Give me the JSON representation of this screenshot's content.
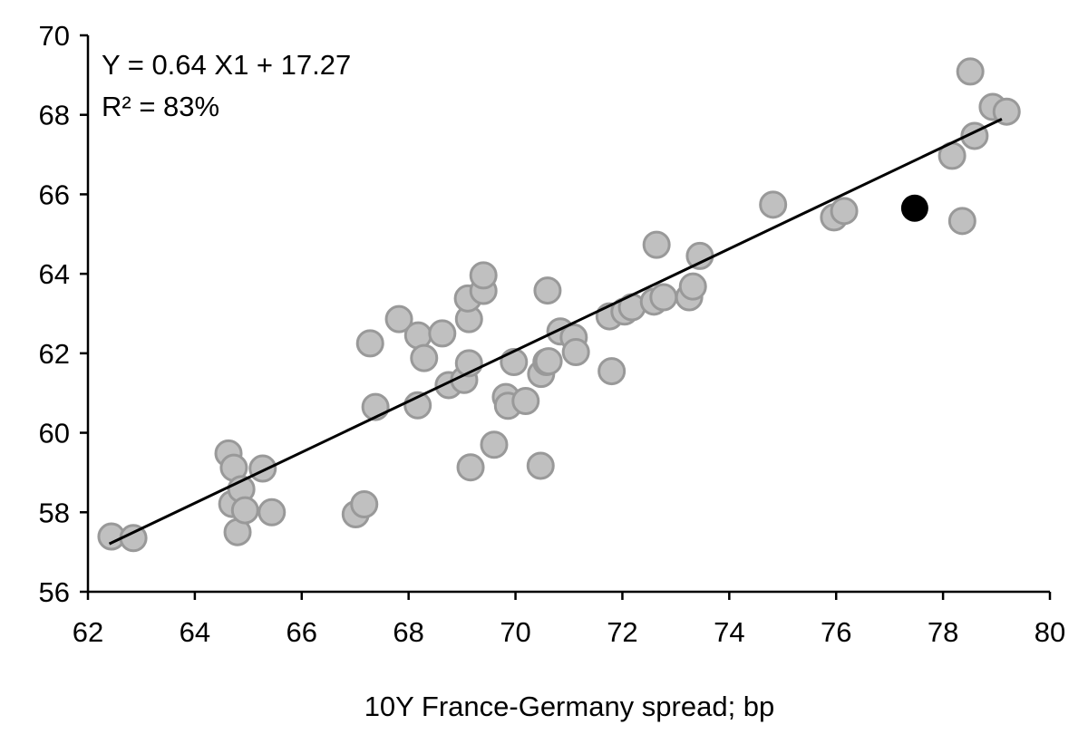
{
  "chart_data": {
    "type": "scatter",
    "title": "",
    "xlabel": "10Y France-Germany spread; bp",
    "ylabel": "",
    "xlim": [
      62,
      80
    ],
    "ylim": [
      56,
      70
    ],
    "xticks": [
      62,
      64,
      66,
      68,
      70,
      72,
      74,
      76,
      78,
      80
    ],
    "yticks": [
      56,
      58,
      60,
      62,
      64,
      66,
      68,
      70
    ],
    "grid": false,
    "annotations": [
      "Y = 0.64 X1 + 17.27",
      "R² = 83%"
    ],
    "regression": {
      "slope": 0.64,
      "intercept": 17.27,
      "r2": 0.83,
      "x_range": [
        62.4,
        79.1
      ]
    },
    "colors": {
      "points_fill": "#c0c0c0",
      "points_stroke": "#999999",
      "highlight": "#000000",
      "line": "#000000"
    },
    "points": [
      [
        62.44,
        57.39
      ],
      [
        62.85,
        57.35
      ],
      [
        64.63,
        59.48
      ],
      [
        64.73,
        59.12
      ],
      [
        64.7,
        58.21
      ],
      [
        64.87,
        58.58
      ],
      [
        64.8,
        57.5
      ],
      [
        64.94,
        58.05
      ],
      [
        65.27,
        59.1
      ],
      [
        65.44,
        58.0
      ],
      [
        67.01,
        57.95
      ],
      [
        67.17,
        58.2
      ],
      [
        67.28,
        62.25
      ],
      [
        67.38,
        60.65
      ],
      [
        67.82,
        62.86
      ],
      [
        68.17,
        60.69
      ],
      [
        68.18,
        62.45
      ],
      [
        68.29,
        61.88
      ],
      [
        68.63,
        62.5
      ],
      [
        68.75,
        61.2
      ],
      [
        69.04,
        61.33
      ],
      [
        69.13,
        62.86
      ],
      [
        69.11,
        63.38
      ],
      [
        69.4,
        63.57
      ],
      [
        69.4,
        63.96
      ],
      [
        69.13,
        61.75
      ],
      [
        69.16,
        59.13
      ],
      [
        69.6,
        59.7
      ],
      [
        69.82,
        60.9
      ],
      [
        69.86,
        60.68
      ],
      [
        69.97,
        61.78
      ],
      [
        70.19,
        60.8
      ],
      [
        70.47,
        59.17
      ],
      [
        70.48,
        61.48
      ],
      [
        70.58,
        61.78
      ],
      [
        70.6,
        63.58
      ],
      [
        70.62,
        61.8
      ],
      [
        70.84,
        62.55
      ],
      [
        71.09,
        62.4
      ],
      [
        71.13,
        62.03
      ],
      [
        71.8,
        61.55
      ],
      [
        71.76,
        62.93
      ],
      [
        72.04,
        63.05
      ],
      [
        72.18,
        63.16
      ],
      [
        72.59,
        63.3
      ],
      [
        72.64,
        64.73
      ],
      [
        72.77,
        63.41
      ],
      [
        73.25,
        63.41
      ],
      [
        73.32,
        63.68
      ],
      [
        73.45,
        64.45
      ],
      [
        74.82,
        65.74
      ],
      [
        75.96,
        65.42
      ],
      [
        76.15,
        65.58
      ],
      [
        78.17,
        66.97
      ],
      [
        78.36,
        65.33
      ],
      [
        78.59,
        67.47
      ],
      [
        78.51,
        69.09
      ],
      [
        78.93,
        68.2
      ],
      [
        79.19,
        68.08
      ]
    ],
    "highlight_point": [
      77.47,
      65.65
    ]
  }
}
